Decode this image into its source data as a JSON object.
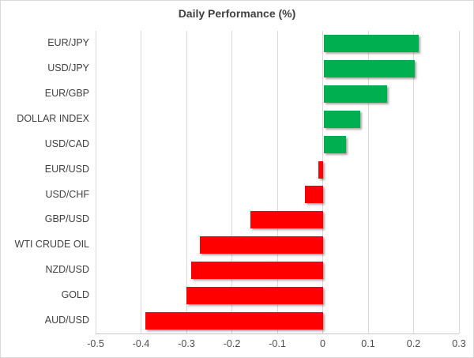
{
  "chart_data": {
    "type": "bar",
    "orientation": "horizontal",
    "title": "Daily Performance (%)",
    "categories": [
      "EUR/JPY",
      "USD/JPY",
      "EUR/GBP",
      "DOLLAR INDEX",
      "USD/CAD",
      "EUR/USD",
      "USD/CHF",
      "GBP/USD",
      "WTI CRUDE OIL",
      "NZD/USD",
      "GOLD",
      "AUD/USD"
    ],
    "values": [
      0.21,
      0.2,
      0.14,
      0.08,
      0.05,
      -0.01,
      -0.04,
      -0.16,
      -0.27,
      -0.29,
      -0.3,
      -0.39
    ],
    "xlabel": "",
    "ylabel": "",
    "xlim": [
      -0.5,
      0.3
    ],
    "x_ticks": [
      "-0.5",
      "-0.4",
      "-0.3",
      "-0.2",
      "-0.1",
      "0",
      "0.1",
      "0.2",
      "0.3"
    ],
    "grid": "vertical",
    "legend": "none",
    "colors": {
      "positive": "#00B050",
      "negative": "#FF0000",
      "gridline": "#D9D9D9",
      "axis_line": "#C6C6C6",
      "title_text": "#404040",
      "label_text": "#404040",
      "tick_text": "#4D4D4D",
      "border": "#D9D9D9",
      "background": "#FFFFFF"
    }
  }
}
